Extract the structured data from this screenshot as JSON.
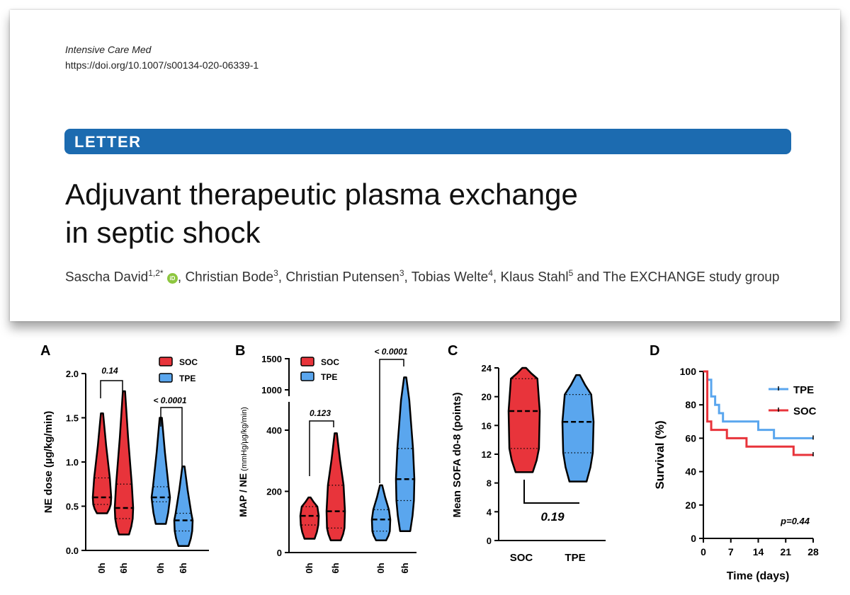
{
  "header": {
    "journal": "Intensive Care Med",
    "doi": "https://doi.org/10.1007/s00134-020-06339-1",
    "section_label": "LETTER",
    "title_line1": "Adjuvant therapeutic plasma exchange",
    "title_line2": "in septic shock",
    "authors": [
      {
        "name": "Sascha David",
        "sup": "1,2*"
      },
      {
        "name": "Christian Bode",
        "sup": "3"
      },
      {
        "name": "Christian Putensen",
        "sup": "3"
      },
      {
        "name": "Tobias Welte",
        "sup": "4"
      },
      {
        "name": "Klaus Stahl",
        "sup": "5"
      }
    ],
    "authors_tail": "and The EXCHANGE study group",
    "orcid_icon": "iD"
  },
  "colors": {
    "SOC": "#e8343b",
    "TPE": "#5aa6ee",
    "letter_bar": "#1c6bb0"
  },
  "chart_data": [
    {
      "panel": "A",
      "type": "violin",
      "ylabel": "NE dose (µg/kg/min)",
      "ylim": [
        0,
        2.0
      ],
      "yticks": [
        "0.0",
        "0.5",
        "1.0",
        "1.5",
        "2.0"
      ],
      "legend": [
        "SOC",
        "TPE"
      ],
      "categories": [
        "0h",
        "6h",
        "0h",
        "6h"
      ],
      "series": [
        {
          "name": "SOC",
          "time": "0h",
          "min": 0.42,
          "q1": 0.52,
          "median": 0.6,
          "q3": 0.82,
          "max": 1.55
        },
        {
          "name": "SOC",
          "time": "6h",
          "min": 0.18,
          "q1": 0.36,
          "median": 0.48,
          "q3": 0.75,
          "max": 1.8
        },
        {
          "name": "TPE",
          "time": "0h",
          "min": 0.3,
          "q1": 0.55,
          "median": 0.6,
          "q3": 0.72,
          "max": 1.5
        },
        {
          "name": "TPE",
          "time": "6h",
          "min": 0.05,
          "q1": 0.22,
          "median": 0.34,
          "q3": 0.42,
          "max": 0.95
        }
      ],
      "annotations": [
        {
          "label": "0.14",
          "pair": [
            0,
            1
          ]
        },
        {
          "label": "< 0.0001",
          "pair": [
            2,
            3
          ]
        }
      ]
    },
    {
      "panel": "B",
      "type": "violin",
      "ylabel": "MAP / NE",
      "ylabel_unit": "(mmHg/µg/kg/min)",
      "yticks_low": [
        "0",
        "200",
        "400"
      ],
      "yticks_high": [
        "1000",
        "1500"
      ],
      "ylim": [
        0,
        1500
      ],
      "legend": [
        "SOC",
        "TPE"
      ],
      "categories": [
        "0h",
        "6h",
        "0h",
        "6h"
      ],
      "series": [
        {
          "name": "SOC",
          "time": "0h",
          "min": 45,
          "q1": 90,
          "median": 120,
          "q3": 150,
          "max": 180
        },
        {
          "name": "SOC",
          "time": "6h",
          "min": 40,
          "q1": 80,
          "median": 135,
          "q3": 220,
          "max": 390
        },
        {
          "name": "TPE",
          "time": "0h",
          "min": 40,
          "q1": 70,
          "median": 108,
          "q3": 140,
          "max": 220
        },
        {
          "name": "TPE",
          "time": "6h",
          "min": 70,
          "q1": 170,
          "median": 240,
          "q3": 340,
          "max": 1200
        }
      ],
      "annotations": [
        {
          "label": "0.123",
          "pair": [
            0,
            1
          ]
        },
        {
          "label": "< 0.0001",
          "pair": [
            2,
            3
          ]
        }
      ]
    },
    {
      "panel": "C",
      "type": "violin",
      "ylabel": "Mean SOFA d0-8 (points)",
      "ylim": [
        0,
        24
      ],
      "yticks": [
        "0",
        "4",
        "8",
        "12",
        "16",
        "20",
        "24"
      ],
      "categories": [
        "SOC",
        "TPE"
      ],
      "series": [
        {
          "name": "SOC",
          "min": 9.5,
          "q1": 12.8,
          "median": 18,
          "q3": 22.5,
          "max": 24
        },
        {
          "name": "TPE",
          "min": 8.2,
          "q1": 12.2,
          "median": 16.5,
          "q3": 20.3,
          "max": 23
        }
      ],
      "annotations": [
        {
          "label": "0.19",
          "pair": [
            0,
            1
          ]
        }
      ]
    },
    {
      "panel": "D",
      "type": "line",
      "subtype": "kaplan-meier",
      "ylabel": "Survival (%)",
      "xlabel": "Time (days)",
      "xticks": [
        "0",
        "7",
        "14",
        "21",
        "28"
      ],
      "yticks": [
        "0",
        "20",
        "40",
        "60",
        "80",
        "100"
      ],
      "xlim": [
        0,
        28
      ],
      "ylim": [
        0,
        100
      ],
      "legend": [
        "TPE",
        "SOC"
      ],
      "series": [
        {
          "name": "TPE",
          "x": [
            0,
            1,
            2,
            3,
            4,
            5,
            6,
            14,
            18,
            28
          ],
          "y": [
            100,
            95,
            85,
            80,
            75,
            70,
            70,
            65,
            60,
            60
          ]
        },
        {
          "name": "SOC",
          "x": [
            0,
            1,
            2,
            3,
            6,
            11,
            23,
            28
          ],
          "y": [
            100,
            70,
            65,
            65,
            60,
            55,
            50,
            50
          ]
        }
      ],
      "annotation": "p=0.44"
    }
  ]
}
